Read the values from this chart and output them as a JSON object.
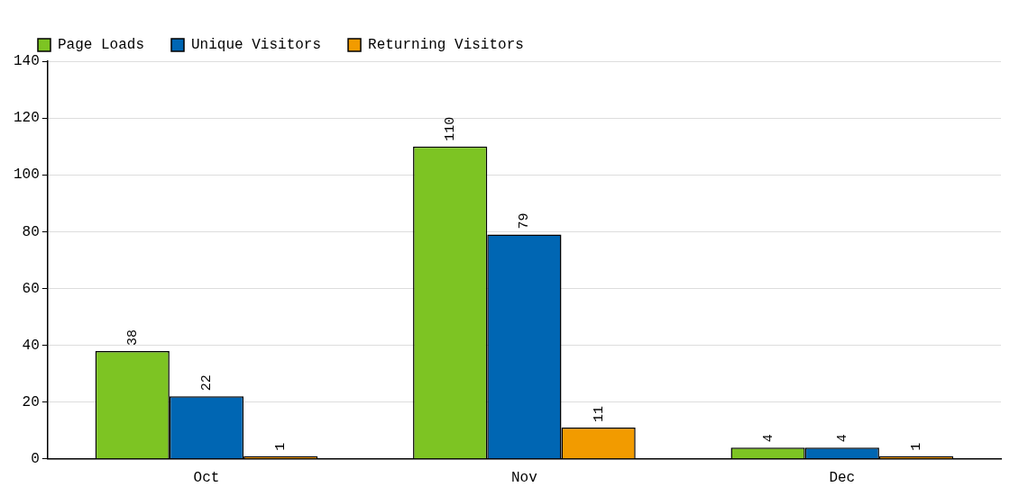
{
  "chart_data": {
    "type": "bar",
    "categories": [
      "Oct",
      "Nov",
      "Dec"
    ],
    "series": [
      {
        "name": "Page Loads",
        "color": "#7dc423",
        "values": [
          38,
          110,
          4
        ]
      },
      {
        "name": "Unique Visitors",
        "color": "#0066b3",
        "values": [
          22,
          79,
          4
        ]
      },
      {
        "name": "Returning Visitors",
        "color": "#f29b00",
        "values": [
          1,
          11,
          1
        ]
      }
    ],
    "ylim": [
      0,
      140
    ],
    "yticks": [
      0,
      20,
      40,
      60,
      80,
      100,
      120,
      140
    ],
    "grid": "y",
    "legend": "top",
    "data_labels": true
  }
}
